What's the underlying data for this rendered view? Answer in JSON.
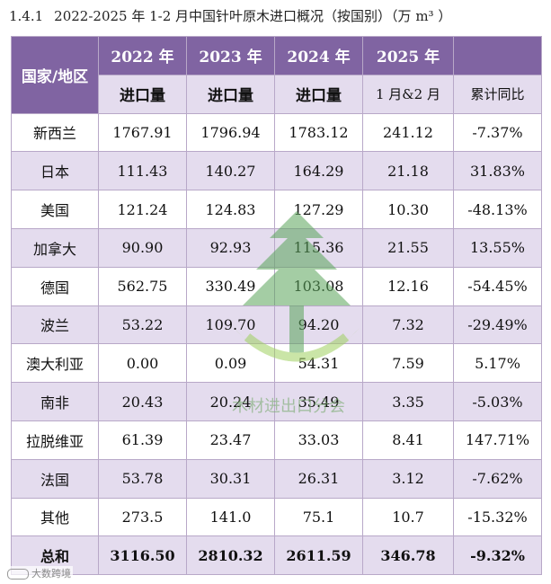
{
  "title": {
    "section": "1.4.1",
    "text": "2022-2025 年 1-2 月中国针叶原木进口概况（按国别）（万 m³ ）"
  },
  "table": {
    "header_row1": {
      "region": "国家/地区",
      "y2022": "2022 年",
      "y2023": "2023 年",
      "y2024": "2024 年",
      "y2025": "2025 年"
    },
    "header_row2": {
      "c2022": "进口量",
      "c2023": "进口量",
      "c2024": "进口量",
      "c2025": "1 月&2 月",
      "yoy": "累计同比"
    },
    "rows": [
      {
        "name": "新西兰",
        "v2022": "1767.91",
        "v2023": "1796.94",
        "v2024": "1783.12",
        "v2025": "241.12",
        "yoy": "-7.37%"
      },
      {
        "name": "日本",
        "v2022": "111.43",
        "v2023": "140.27",
        "v2024": "164.29",
        "v2025": "21.18",
        "yoy": "31.83%"
      },
      {
        "name": "美国",
        "v2022": "121.24",
        "v2023": "124.83",
        "v2024": "127.29",
        "v2025": "10.30",
        "yoy": "-48.13%"
      },
      {
        "name": "加拿大",
        "v2022": "90.90",
        "v2023": "92.93",
        "v2024": "115.36",
        "v2025": "21.55",
        "yoy": "13.55%"
      },
      {
        "name": "德国",
        "v2022": "562.75",
        "v2023": "330.49",
        "v2024": "103.08",
        "v2025": "12.16",
        "yoy": "-54.45%"
      },
      {
        "name": "波兰",
        "v2022": "53.22",
        "v2023": "109.70",
        "v2024": "94.20",
        "v2025": "7.32",
        "yoy": "-29.49%"
      },
      {
        "name": "澳大利亚",
        "v2022": "0.00",
        "v2023": "0.09",
        "v2024": "54.31",
        "v2025": "7.59",
        "yoy": "5.17%"
      },
      {
        "name": "南非",
        "v2022": "20.43",
        "v2023": "20.24",
        "v2024": "35.49",
        "v2025": "3.35",
        "yoy": "-5.03%"
      },
      {
        "name": "拉脱维亚",
        "v2022": "61.39",
        "v2023": "23.47",
        "v2024": "33.03",
        "v2025": "8.41",
        "yoy": "147.71%"
      },
      {
        "name": "法国",
        "v2022": "53.78",
        "v2023": "30.31",
        "v2024": "26.31",
        "v2025": "3.12",
        "yoy": "-7.62%"
      },
      {
        "name": "其他",
        "v2022": "273.5",
        "v2023": "141.0",
        "v2024": "75.1",
        "v2025": "10.7",
        "yoy": "-15.32%"
      }
    ],
    "total": {
      "name": "总和",
      "v2022": "3116.50",
      "v2023": "2810.32",
      "v2024": "2611.59",
      "v2025": "346.78",
      "yoy": "-9.32%"
    }
  },
  "watermark": {
    "text": "木材进出口分会",
    "icon": "tree-logo-icon"
  },
  "corner_mark": {
    "text": "大数跨境",
    "icon": "source-logo-icon"
  },
  "colors": {
    "header_bg": "#8064a2",
    "band_bg": "#e4dcee",
    "border": "#b8a8c8"
  }
}
